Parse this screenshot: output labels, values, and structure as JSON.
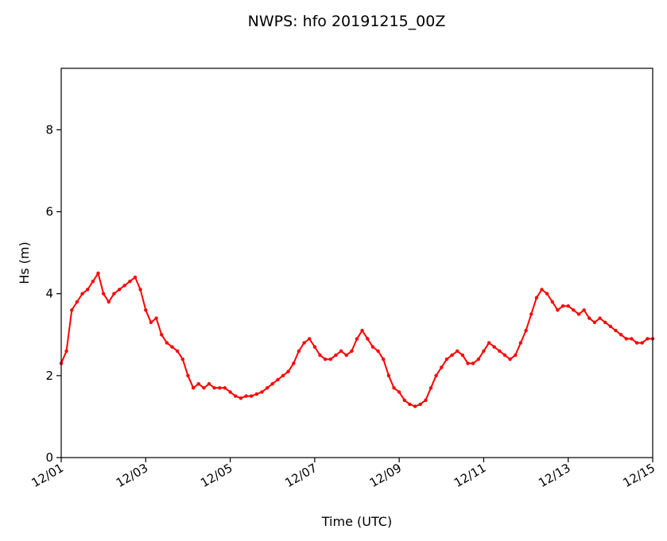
{
  "chart_data": {
    "type": "line",
    "title": "NWPS: hfo 20191215_00Z",
    "xlabel": "Time (UTC)",
    "ylabel": "Hs (m)",
    "x_ticks": [
      "12/01",
      "12/03",
      "12/05",
      "12/07",
      "12/09",
      "12/11",
      "12/13",
      "12/15"
    ],
    "y_ticks": [
      "0",
      "2",
      "4",
      "6",
      "8"
    ],
    "xlim": [
      "2019-12-01 00:00",
      "2019-12-15 00:00"
    ],
    "ylim": [
      0,
      9.5
    ],
    "grid": false,
    "series": [
      {
        "color": "#ff0000",
        "marker": "circle",
        "x": [
          "2019-12-01 00:00",
          "2019-12-01 03:00",
          "2019-12-01 06:00",
          "2019-12-01 09:00",
          "2019-12-01 12:00",
          "2019-12-01 15:00",
          "2019-12-01 18:00",
          "2019-12-01 21:00",
          "2019-12-02 00:00",
          "2019-12-02 03:00",
          "2019-12-02 06:00",
          "2019-12-02 09:00",
          "2019-12-02 12:00",
          "2019-12-02 15:00",
          "2019-12-02 18:00",
          "2019-12-02 21:00",
          "2019-12-03 00:00",
          "2019-12-03 03:00",
          "2019-12-03 06:00",
          "2019-12-03 09:00",
          "2019-12-03 12:00",
          "2019-12-03 15:00",
          "2019-12-03 18:00",
          "2019-12-03 21:00",
          "2019-12-04 00:00",
          "2019-12-04 03:00",
          "2019-12-04 06:00",
          "2019-12-04 09:00",
          "2019-12-04 12:00",
          "2019-12-04 15:00",
          "2019-12-04 18:00",
          "2019-12-04 21:00",
          "2019-12-05 00:00",
          "2019-12-05 03:00",
          "2019-12-05 06:00",
          "2019-12-05 09:00",
          "2019-12-05 12:00",
          "2019-12-05 15:00",
          "2019-12-05 18:00",
          "2019-12-05 21:00",
          "2019-12-06 00:00",
          "2019-12-06 03:00",
          "2019-12-06 06:00",
          "2019-12-06 09:00",
          "2019-12-06 12:00",
          "2019-12-06 15:00",
          "2019-12-06 18:00",
          "2019-12-06 21:00",
          "2019-12-07 00:00",
          "2019-12-07 03:00",
          "2019-12-07 06:00",
          "2019-12-07 09:00",
          "2019-12-07 12:00",
          "2019-12-07 15:00",
          "2019-12-07 18:00",
          "2019-12-07 21:00",
          "2019-12-08 00:00",
          "2019-12-08 03:00",
          "2019-12-08 06:00",
          "2019-12-08 09:00",
          "2019-12-08 12:00",
          "2019-12-08 15:00",
          "2019-12-08 18:00",
          "2019-12-08 21:00",
          "2019-12-09 00:00",
          "2019-12-09 03:00",
          "2019-12-09 06:00",
          "2019-12-09 09:00",
          "2019-12-09 12:00",
          "2019-12-09 15:00",
          "2019-12-09 18:00",
          "2019-12-09 21:00",
          "2019-12-10 00:00",
          "2019-12-10 03:00",
          "2019-12-10 06:00",
          "2019-12-10 09:00",
          "2019-12-10 12:00",
          "2019-12-10 15:00",
          "2019-12-10 18:00",
          "2019-12-10 21:00",
          "2019-12-11 00:00",
          "2019-12-11 03:00",
          "2019-12-11 06:00",
          "2019-12-11 09:00",
          "2019-12-11 12:00",
          "2019-12-11 15:00",
          "2019-12-11 18:00",
          "2019-12-11 21:00",
          "2019-12-12 00:00",
          "2019-12-12 03:00",
          "2019-12-12 06:00",
          "2019-12-12 09:00",
          "2019-12-12 12:00",
          "2019-12-12 15:00",
          "2019-12-12 18:00",
          "2019-12-12 21:00",
          "2019-12-13 00:00",
          "2019-12-13 03:00",
          "2019-12-13 06:00",
          "2019-12-13 09:00",
          "2019-12-13 12:00",
          "2019-12-13 15:00",
          "2019-12-13 18:00",
          "2019-12-13 21:00",
          "2019-12-14 00:00",
          "2019-12-14 03:00",
          "2019-12-14 06:00",
          "2019-12-14 09:00",
          "2019-12-14 12:00",
          "2019-12-14 15:00",
          "2019-12-14 18:00",
          "2019-12-14 21:00",
          "2019-12-15 00:00"
        ],
        "y": [
          2.3,
          2.6,
          3.6,
          3.8,
          4.0,
          4.1,
          4.3,
          4.5,
          4.0,
          3.8,
          4.0,
          4.1,
          4.2,
          4.3,
          4.4,
          4.1,
          3.6,
          3.3,
          3.4,
          3.0,
          2.8,
          2.7,
          2.6,
          2.4,
          2.0,
          1.7,
          1.8,
          1.7,
          1.8,
          1.7,
          1.7,
          1.7,
          1.6,
          1.5,
          1.45,
          1.5,
          1.5,
          1.55,
          1.6,
          1.7,
          1.8,
          1.9,
          2.0,
          2.1,
          2.3,
          2.6,
          2.8,
          2.9,
          2.7,
          2.5,
          2.4,
          2.4,
          2.5,
          2.6,
          2.5,
          2.6,
          2.9,
          3.1,
          2.9,
          2.7,
          2.6,
          2.4,
          2.0,
          1.7,
          1.6,
          1.4,
          1.3,
          1.25,
          1.3,
          1.4,
          1.7,
          2.0,
          2.2,
          2.4,
          2.5,
          2.6,
          2.5,
          2.3,
          2.3,
          2.4,
          2.6,
          2.8,
          2.7,
          2.6,
          2.5,
          2.4,
          2.5,
          2.8,
          3.1,
          3.5,
          3.9,
          4.1,
          4.0,
          3.8,
          3.6,
          3.7,
          3.7,
          3.6,
          3.5,
          3.6,
          3.4,
          3.3,
          3.4,
          3.3,
          3.2,
          3.1,
          3.0,
          2.9,
          2.9,
          2.8,
          2.8,
          2.9,
          2.9
        ]
      }
    ]
  }
}
